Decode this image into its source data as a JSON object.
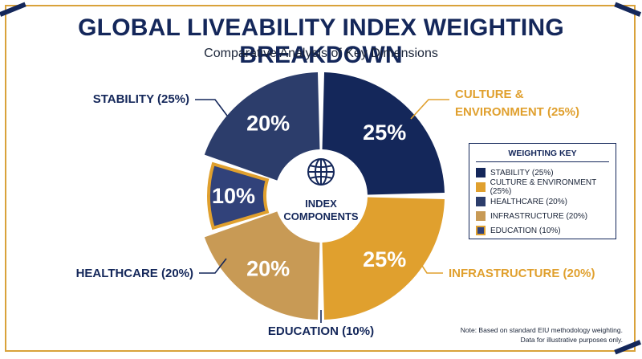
{
  "title": "GLOBAL LIVEABILITY INDEX WEIGHTING BREAKDOWN",
  "subtitle": "Comparative Analysis of Key Dimensions",
  "center_label_line1": "INDEX",
  "center_label_line2": "COMPONENTS",
  "center_icon": "globe-icon",
  "colors": {
    "navy": "#14275a",
    "gold": "#e0a02e",
    "slate": "#2c3d6b",
    "tan": "#c89a55",
    "indigo": "#31427a"
  },
  "legend": {
    "title": "WEIGHTING KEY",
    "items": [
      {
        "label": "STABILITY (25%)",
        "color": "#14275a"
      },
      {
        "label": "CULTURE & ENVIRONMENT (25%)",
        "color": "#e0a02e"
      },
      {
        "label": "HEALTHCARE (20%)",
        "color": "#2c3d6b"
      },
      {
        "label": "INFRASTRUCTURE (20%)",
        "color": "#c89a55"
      },
      {
        "label": "EDUCATION (10%)",
        "color": "#31427a"
      }
    ]
  },
  "note_line1": "Note: Based on standard EIU methodology weighting.",
  "note_line2": "Data for illustrative purposes only.",
  "chart_data": {
    "type": "pie",
    "title": "GLOBAL LIVEABILITY INDEX WEIGHTING BREAKDOWN",
    "subtitle": "Comparative Analysis of Key Dimensions",
    "legend_position": "right",
    "slices": [
      {
        "name": "STABILITY (25%)",
        "value": 25,
        "label": "25%",
        "color": "#14275a",
        "outer_label": [
          "STABILITY (25%)"
        ]
      },
      {
        "name": "CULTURE & ENVIRONMENT (25%)",
        "value": 25,
        "label": "25%",
        "color": "#e0a02e",
        "outer_label": [
          "CULTURE &",
          "ENVIRONMENT (25%)"
        ]
      },
      {
        "name": "INFRASTRUCTURE (20%)",
        "value": 20,
        "label": "20%",
        "color": "#c89a55",
        "outer_label": [
          "INFRASTRUCTURE (20%)"
        ]
      },
      {
        "name": "EDUCATION (10%)",
        "value": 10,
        "label": "10%",
        "color": "#31427a",
        "outer_label": [
          "EDUCATION (10%)"
        ]
      },
      {
        "name": "HEALTHCARE (20%)",
        "value": 20,
        "label": "20%",
        "color": "#2c3d6b",
        "outer_label": [
          "HEALTHCARE (20%)"
        ]
      }
    ]
  }
}
